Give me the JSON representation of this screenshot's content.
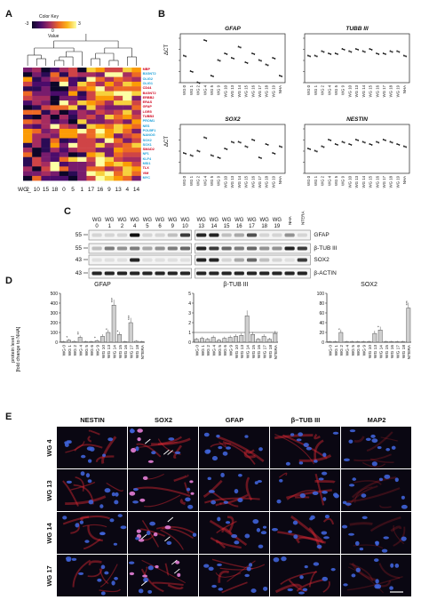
{
  "panels": {
    "a": "A",
    "b": "B",
    "c": "C",
    "d": "D",
    "e": "E"
  },
  "panelA": {
    "color_key_title": "Color Key",
    "color_key_min": "-3",
    "color_key_mid": "0",
    "color_key_max": "3",
    "color_key_xlabel": "Value",
    "x_prefix": "WG_",
    "columns": [
      "2",
      "10",
      "15",
      "18",
      "0",
      "5",
      "1",
      "17",
      "16",
      "9",
      "13",
      "4",
      "14"
    ],
    "genes": [
      {
        "name": "MBP",
        "color": "#d0021b"
      },
      {
        "name": "B3GNT2",
        "color": "#1a9fd8"
      },
      {
        "name": "OLIG2",
        "color": "#1a9fd8"
      },
      {
        "name": "OLIG1",
        "color": "#1a9fd8"
      },
      {
        "name": "CD44",
        "color": "#d0021b"
      },
      {
        "name": "B4GNT2",
        "color": "#d0021b"
      },
      {
        "name": "ERBB2",
        "color": "#d0021b"
      },
      {
        "name": "ERAS",
        "color": "#d0021b"
      },
      {
        "name": "GFAP",
        "color": "#d0021b"
      },
      {
        "name": "LGR5",
        "color": "#d0021b"
      },
      {
        "name": "TUBB3",
        "color": "#d0021b"
      },
      {
        "name": "PROM1",
        "color": "#1a9fd8"
      },
      {
        "name": "NES",
        "color": "#1a9fd8"
      },
      {
        "name": "POU5F1",
        "color": "#1a9fd8"
      },
      {
        "name": "NANOG",
        "color": "#1a9fd8"
      },
      {
        "name": "SOX2",
        "color": "#1a9fd8"
      },
      {
        "name": "SOX1",
        "color": "#1a9fd8"
      },
      {
        "name": "SMAD2",
        "color": "#d0021b"
      },
      {
        "name": "NF1",
        "color": "#1a9fd8"
      },
      {
        "name": "KLF4",
        "color": "#1a9fd8"
      },
      {
        "name": "MSI1",
        "color": "#1a9fd8"
      },
      {
        "name": "TLX",
        "color": "#d0021b"
      },
      {
        "name": "VIM",
        "color": "#d0021b"
      },
      {
        "name": "MYC",
        "color": "#1a9fd8"
      }
    ]
  },
  "panelB": {
    "ylabel": "ΔCT",
    "xlabels": [
      "WG 0",
      "WG 1",
      "WG 2",
      "WG 4",
      "WG 5",
      "WG 9",
      "WG 10",
      "WG 13",
      "WG 14",
      "WG 15",
      "WG 16",
      "WG 17",
      "WG 18",
      "WG 19",
      "NHA"
    ],
    "plots": [
      {
        "gene": "GFAP",
        "values": [
          12,
          5,
          0,
          19,
          3,
          10,
          13,
          11,
          16,
          9,
          13,
          10,
          8,
          11,
          3
        ]
      },
      {
        "gene": "TUBB III",
        "values": [
          12,
          12,
          14,
          13,
          13,
          15,
          14,
          15,
          14,
          15,
          13,
          13,
          14,
          14,
          12
        ]
      },
      {
        "gene": "SOX2",
        "values": [
          9,
          8,
          10,
          16,
          8,
          7,
          11,
          14,
          14,
          12,
          15,
          7,
          13,
          9,
          12
        ]
      },
      {
        "gene": "NESTIN",
        "values": [
          11,
          10,
          12,
          15,
          13,
          14,
          13,
          15,
          14,
          13,
          14,
          15,
          14,
          13,
          12
        ]
      }
    ]
  },
  "panelC": {
    "lanes_left": [
      "WG 0",
      "WG 1",
      "WG 2",
      "WG 4",
      "WG 5",
      "WG 6",
      "WG 9",
      "WG 10"
    ],
    "lanes_right": [
      "WG 13",
      "WG 14",
      "WG 15",
      "WG 16",
      "WG 17",
      "WG 18",
      "WG 19",
      "NHA",
      "NTERA"
    ],
    "markers": [
      "55",
      "55",
      "43",
      "43"
    ],
    "proteins": [
      "GFAP",
      "β-TUB III",
      "SOX2",
      "β-ACTIN"
    ]
  },
  "panelD": {
    "ylabel_line1": "protein level",
    "ylabel_line2": "[fold change to NHA]",
    "xlabels": [
      "WG 0",
      "WG 1",
      "WG 2",
      "WG 4",
      "WG 5",
      "WG 6",
      "WG 9",
      "WG 10",
      "WG 13",
      "WG 14",
      "WG 15",
      "WG 16",
      "WG 17",
      "WG 18",
      "NTERA"
    ],
    "charts": [
      {
        "title": "GFAP",
        "yticks": [
          "0",
          "100",
          "200",
          "300",
          "400",
          "500"
        ],
        "ymax": 500,
        "values": [
          5,
          20,
          8,
          50,
          5,
          5,
          15,
          60,
          100,
          380,
          80,
          5,
          200,
          10,
          5
        ],
        "stars": [
          "",
          "*",
          "",
          "**",
          "",
          "",
          "*",
          "",
          "*",
          "***",
          "*",
          "",
          "***",
          "",
          ""
        ]
      },
      {
        "title": "β-TUB III",
        "yticks": [
          "0",
          "1",
          "2",
          "3",
          "4",
          "5"
        ],
        "ymax": 5,
        "values": [
          0.3,
          0.4,
          0.3,
          0.5,
          0.2,
          0.4,
          0.5,
          0.6,
          0.7,
          2.7,
          0.8,
          0.3,
          0.6,
          0.3,
          0.9
        ],
        "stars": [
          "",
          "",
          "",
          "",
          "",
          "",
          "",
          "",
          "",
          "",
          "",
          "",
          "",
          "",
          ""
        ]
      },
      {
        "title": "SOX2",
        "yticks": [
          "0",
          "20",
          "40",
          "60",
          "80",
          "100"
        ],
        "ymax": 100,
        "values": [
          1,
          1,
          20,
          1,
          1,
          1,
          1,
          1,
          18,
          25,
          1,
          1,
          1,
          1,
          70
        ],
        "stars": [
          "",
          "",
          "*",
          "",
          "",
          "",
          "",
          "",
          "",
          "*",
          "",
          "",
          "",
          "",
          "***"
        ]
      }
    ]
  },
  "panelE": {
    "columns": [
      "NESTIN",
      "SOX2",
      "GFAP",
      "β−TUB III",
      "MAP2"
    ],
    "rows": [
      "WG 4",
      "WG 13",
      "WG 14",
      "WG 17"
    ]
  }
}
